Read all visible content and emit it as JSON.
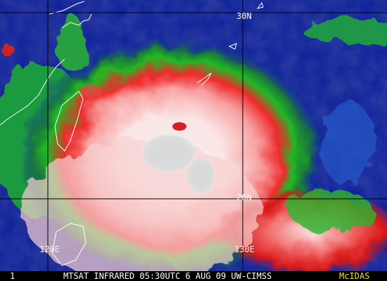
{
  "map": {
    "grid_labels": {
      "lat_30": "30N",
      "lat_20": "20N",
      "lon_120": "120E",
      "lon_130": "130E"
    },
    "frame_number": "1",
    "caption": "MTSAT INFRARED 05:30UTC 6 AUG 09 UW-CIMSS",
    "software": "McIDAS"
  }
}
